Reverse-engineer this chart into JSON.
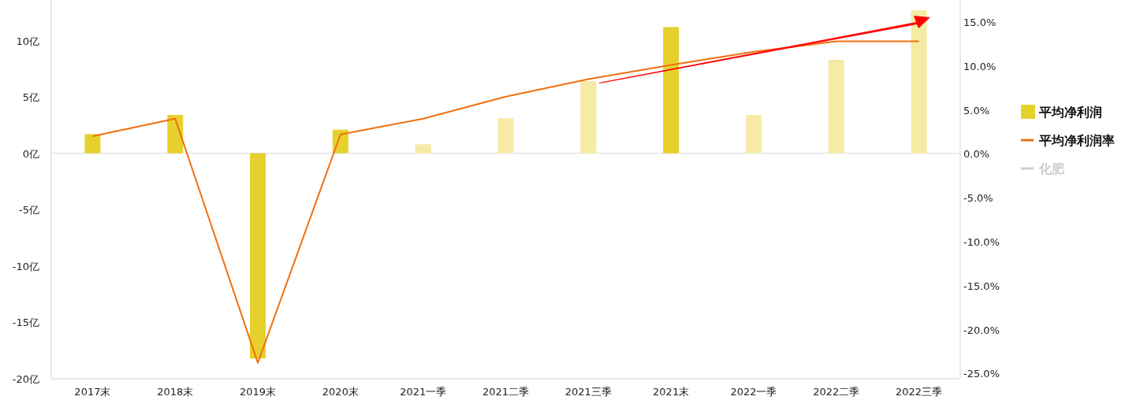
{
  "chart_data": {
    "type": "bar",
    "categories": [
      "2017末",
      "2018末",
      "2019末",
      "2020末",
      "2021一季",
      "2021二季",
      "2021三季",
      "2021末",
      "2022一季",
      "2022二季",
      "2022三季"
    ],
    "series": [
      {
        "name": "平均净利润",
        "color": "#e6d12c",
        "colors": [
          "#e6d12c",
          "#e6d12c",
          "#e6d12c",
          "#e6d12c",
          "#f5eba5",
          "#f5eba5",
          "#f5eba5",
          "#e6d12c",
          "#f5eba5",
          "#f5eba5",
          "#f5eba5"
        ],
        "values": [
          1.7,
          3.4,
          -18.2,
          2.1,
          0.8,
          3.1,
          6.4,
          11.2,
          3.4,
          8.3,
          12.7
        ]
      },
      {
        "name": "平均净利润率",
        "type": "line",
        "axis": "y2",
        "color": "#f07010",
        "values": [
          2.0,
          4.0,
          -23.8,
          2.2,
          4.0,
          6.5,
          8.5,
          10.1,
          11.6,
          12.8,
          12.8
        ]
      },
      {
        "name": "化肥",
        "type": "line",
        "axis": "y2",
        "color": "#cccccc",
        "values": [
          null,
          null,
          null,
          null,
          null,
          null,
          null,
          null,
          null,
          null,
          null
        ]
      }
    ],
    "ylim": [
      -20,
      13.6
    ],
    "yticks": [
      {
        "value": -20,
        "label": "-20亿"
      },
      {
        "value": -15,
        "label": "-15亿"
      },
      {
        "value": -10,
        "label": "-10亿"
      },
      {
        "value": -5,
        "label": "-5亿"
      },
      {
        "value": 0,
        "label": "0亿"
      },
      {
        "value": 5,
        "label": "5亿"
      },
      {
        "value": 10,
        "label": "10亿"
      }
    ],
    "y2lim": [
      -25.6,
      17.5
    ],
    "y2ticks": [
      {
        "value": -25,
        "label": "-25.0%"
      },
      {
        "value": -20,
        "label": "-20.0%"
      },
      {
        "value": -15,
        "label": "-15.0%"
      },
      {
        "value": -10,
        "label": "-10.0%"
      },
      {
        "value": -5,
        "label": "-5.0%"
      },
      {
        "value": 0,
        "label": "0.0%"
      },
      {
        "value": 5,
        "label": "5.0%"
      },
      {
        "value": 10,
        "label": "10.0%"
      },
      {
        "value": 15,
        "label": "15.0%"
      }
    ],
    "legend": "right"
  }
}
